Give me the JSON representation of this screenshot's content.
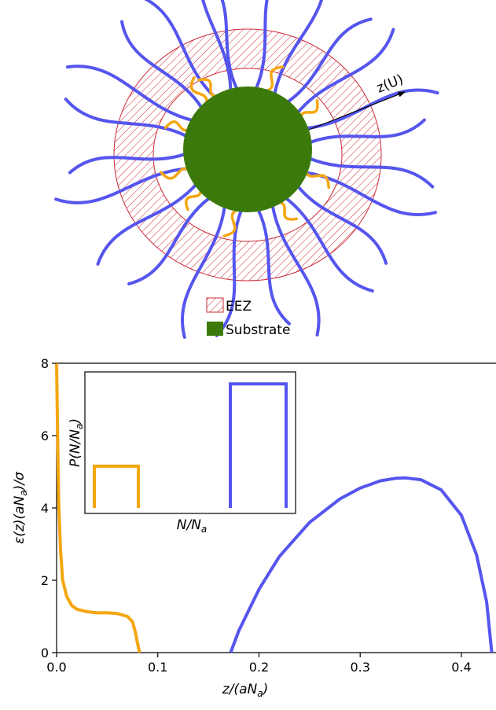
{
  "diagram": {
    "axis_label": "z(U)",
    "legend": [
      {
        "label": "EEZ",
        "swatch": "hatch",
        "color": "#cc2a36"
      },
      {
        "label": "Substrate",
        "swatch": "solid",
        "color": "#3b7a0a"
      }
    ],
    "colors": {
      "substrate": "#3b7a0a",
      "long_chain": "#5555ee",
      "short_chain": "#f5a611",
      "eez": "#cc2a36"
    }
  },
  "chart_data": [
    {
      "type": "line",
      "title": "",
      "xlabel": "z/(aN_a)",
      "ylabel": "ε(z)(aN_a)/σ",
      "xlim": [
        0.0,
        0.435
      ],
      "ylim": [
        0,
        8
      ],
      "xticks": [
        "0.0",
        "0.1",
        "0.2",
        "0.3",
        "0.4"
      ],
      "yticks": [
        "0",
        "2",
        "4",
        "6",
        "8"
      ],
      "grid": false,
      "series": [
        {
          "color": "#f5a611",
          "x": [
            0.0,
            0.001,
            0.002,
            0.004,
            0.006,
            0.01,
            0.015,
            0.02,
            0.03,
            0.04,
            0.05,
            0.06,
            0.07,
            0.075,
            0.078,
            0.08,
            0.082
          ],
          "y": [
            8.0,
            6.0,
            4.2,
            2.8,
            2.0,
            1.55,
            1.3,
            1.2,
            1.13,
            1.1,
            1.1,
            1.08,
            1.0,
            0.85,
            0.55,
            0.25,
            0.0
          ]
        },
        {
          "color": "#5555ee",
          "x": [
            0.172,
            0.18,
            0.2,
            0.22,
            0.25,
            0.28,
            0.3,
            0.32,
            0.335,
            0.345,
            0.36,
            0.38,
            0.4,
            0.415,
            0.425,
            0.43
          ],
          "y": [
            0.0,
            0.6,
            1.75,
            2.65,
            3.6,
            4.25,
            4.55,
            4.75,
            4.82,
            4.83,
            4.78,
            4.5,
            3.8,
            2.7,
            1.4,
            0.0
          ]
        }
      ]
    },
    {
      "type": "line",
      "title": "",
      "xlabel": "N/N_a",
      "ylabel": "P(N/N_a)",
      "grid": false,
      "series": [
        {
          "color": "#f5a611",
          "shape": "box",
          "height": 0.32
        },
        {
          "color": "#5555ee",
          "shape": "box",
          "height": 0.95
        }
      ]
    }
  ]
}
